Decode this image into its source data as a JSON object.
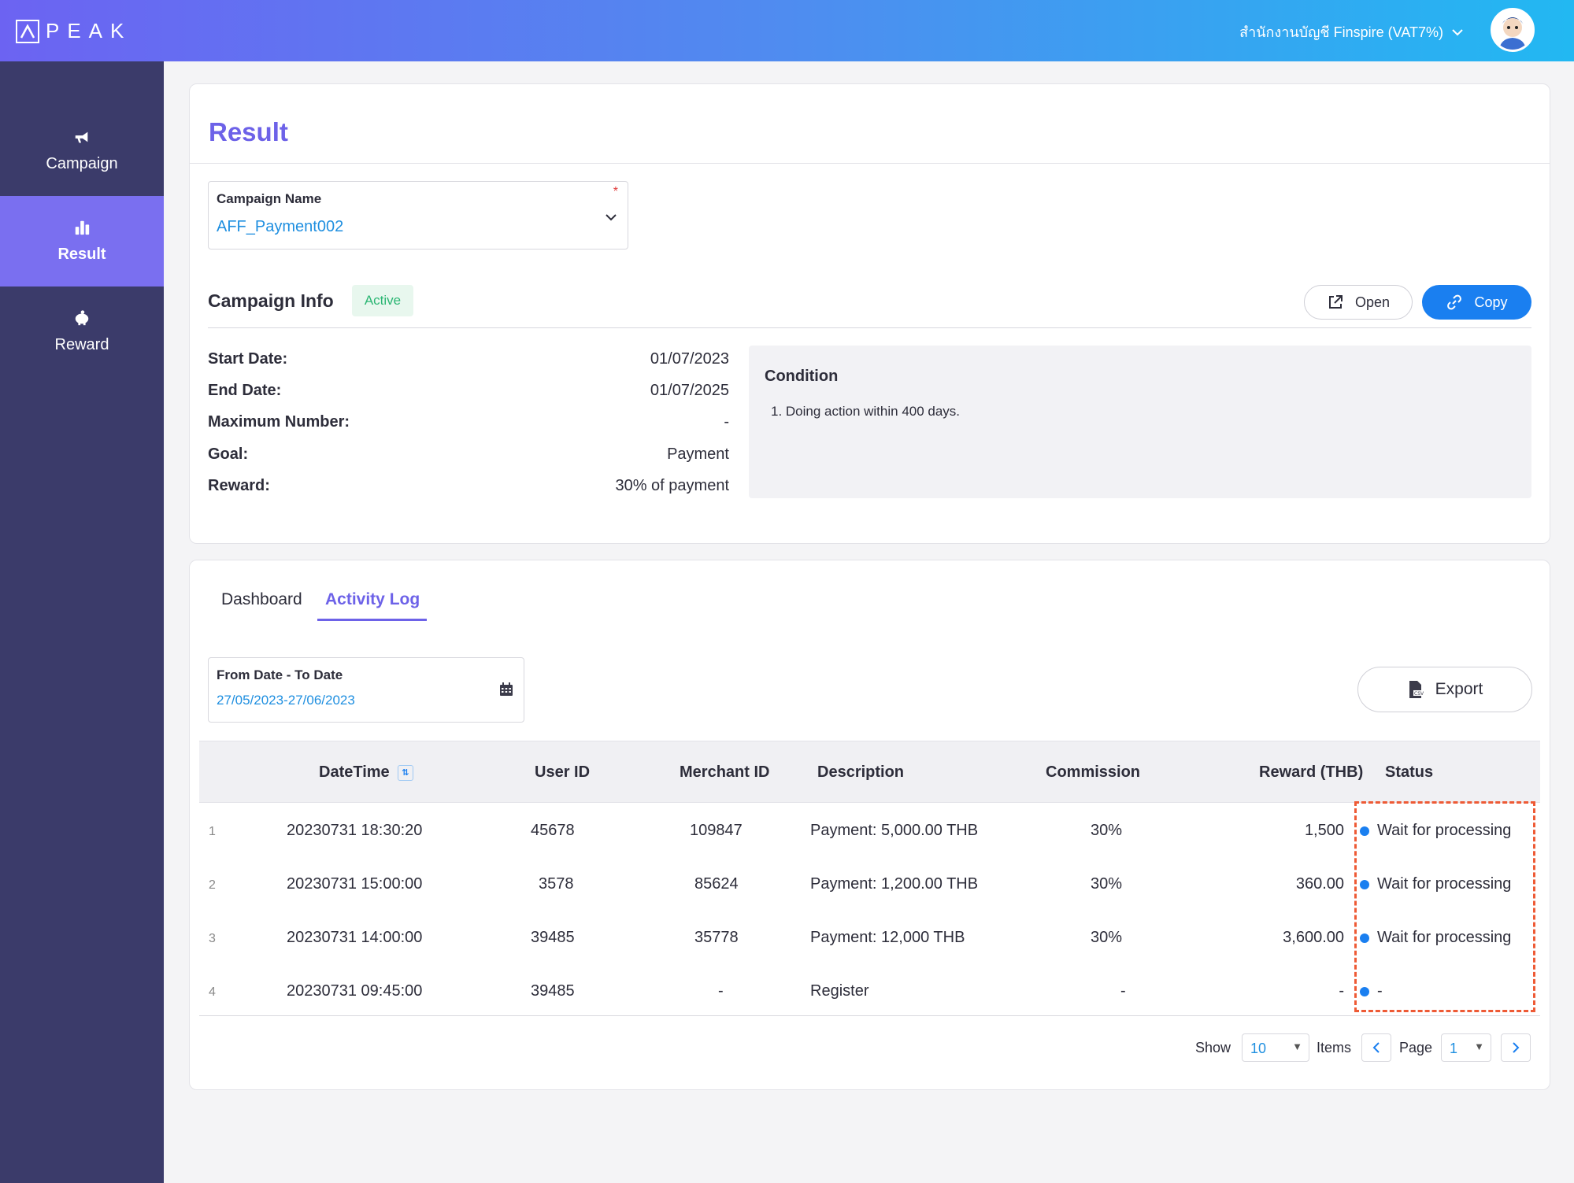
{
  "header": {
    "logo_text": "PEAK",
    "org_name": "สำนักงานบัญชี Finspire (VAT7%)",
    "gradient_colors": [
      "#6c63f2",
      "#4f8cf0",
      "#22b8f2"
    ]
  },
  "sidebar": {
    "items": [
      {
        "label": "Campaign",
        "icon": "megaphone-icon",
        "active": false
      },
      {
        "label": "Result",
        "icon": "bar-chart-icon",
        "active": true
      },
      {
        "label": "Reward",
        "icon": "piggy-bank-icon",
        "active": false
      }
    ]
  },
  "result": {
    "title": "Result",
    "campaign_field": {
      "label": "Campaign Name",
      "value": "AFF_Payment002",
      "required_mark": "*"
    },
    "campaign_info": {
      "title": "Campaign Info",
      "status": "Active",
      "open_label": "Open",
      "copy_label": "Copy",
      "rows": [
        {
          "key": "Start Date:",
          "value": "01/07/2023"
        },
        {
          "key": "End Date:",
          "value": "01/07/2025"
        },
        {
          "key": "Maximum Number:",
          "value": "-"
        },
        {
          "key": "Goal:",
          "value": "Payment"
        },
        {
          "key": "Reward:",
          "value": "30% of payment"
        }
      ],
      "condition": {
        "title": "Condition",
        "items": [
          "1. Doing action within 400 days."
        ]
      }
    }
  },
  "activity": {
    "tabs": [
      {
        "label": "Dashboard",
        "active": false
      },
      {
        "label": "Activity Log",
        "active": true
      }
    ],
    "date_field": {
      "label": "From Date - To Date",
      "value": "27/05/2023-27/06/2023"
    },
    "export_label": "Export",
    "columns": [
      "DateTime",
      "User ID",
      "Merchant ID",
      "Description",
      "Commission",
      "Reward (THB)",
      "Status"
    ],
    "rows": [
      {
        "idx": "1",
        "datetime": "20230731 18:30:20",
        "user_id": "45678",
        "merchant_id": "109847",
        "description": "Payment: 5,000.00 THB",
        "commission": "30%",
        "reward": "1,500",
        "status": "Wait for processing"
      },
      {
        "idx": "2",
        "datetime": "20230731 15:00:00",
        "user_id": "3578",
        "merchant_id": "85624",
        "description": "Payment: 1,200.00 THB",
        "commission": "30%",
        "reward": "360.00",
        "status": "Wait for processing"
      },
      {
        "idx": "3",
        "datetime": "20230731 14:00:00",
        "user_id": "39485",
        "merchant_id": "35778",
        "description": "Payment: 12,000 THB",
        "commission": "30%",
        "reward": "3,600.00",
        "status": "Wait for processing"
      },
      {
        "idx": "4",
        "datetime": "20230731 09:45:00",
        "user_id": "39485",
        "merchant_id": "-",
        "description": "Register",
        "commission": "-",
        "reward": "-",
        "status": "-"
      }
    ],
    "pagination": {
      "show_label": "Show",
      "page_size": "10",
      "items_label": "Items",
      "page_label": "Page",
      "page": "1"
    }
  },
  "colors": {
    "accent": "#6d62e8",
    "primary_blue": "#1a7ff0",
    "sidebar": "#3b3b6a",
    "highlight": "#ee5a35",
    "active_badge": "#2bb673"
  }
}
